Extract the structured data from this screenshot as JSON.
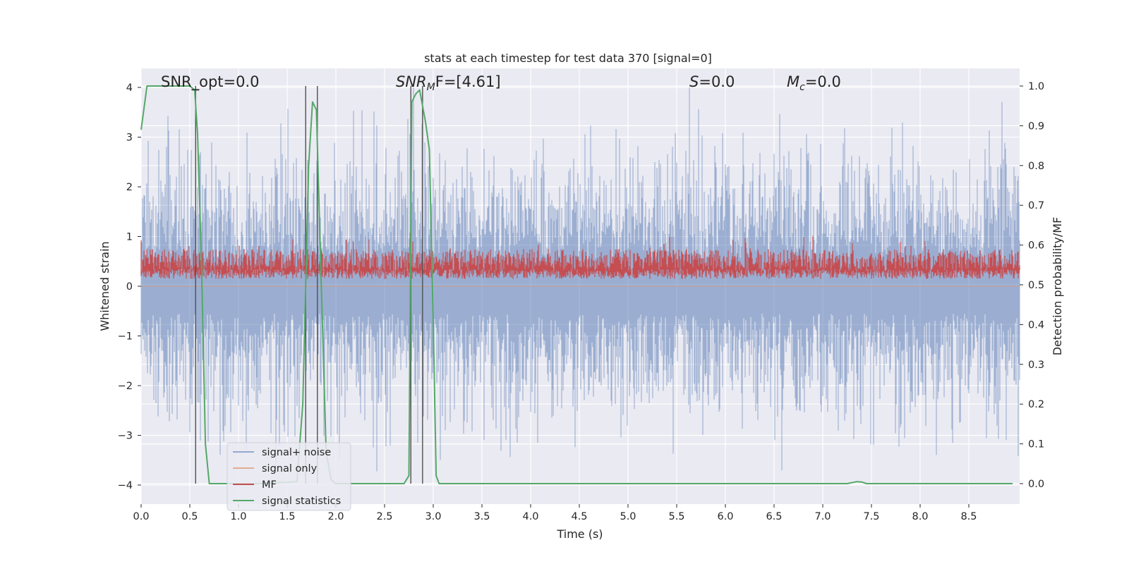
{
  "chart_data": {
    "type": "line",
    "title": "stats at each timestep for test data 370 [signal=0]",
    "xlabel": "Time (s)",
    "ylabel": "Whitened strain",
    "ylabel_right": "Detection probability/MF",
    "xlim": [
      0.0,
      9.0
    ],
    "ylim": [
      -4.4,
      4.4
    ],
    "ylim_right": [
      -0.05,
      1.05
    ],
    "xticks": [
      "0.0",
      "0.5",
      "1.0",
      "1.5",
      "2.0",
      "2.5",
      "3.0",
      "3.5",
      "4.0",
      "4.5",
      "5.0",
      "5.5",
      "6.0",
      "6.5",
      "7.0",
      "7.5",
      "8.0",
      "8.5"
    ],
    "xtick_values": [
      0.0,
      0.5,
      1.0,
      1.5,
      2.0,
      2.5,
      3.0,
      3.5,
      4.0,
      4.5,
      5.0,
      5.5,
      6.0,
      6.5,
      7.0,
      7.5,
      8.0,
      8.5
    ],
    "yticks": [
      "−4",
      "−3",
      "−2",
      "−1",
      "0",
      "1",
      "2",
      "3",
      "4"
    ],
    "ytick_values": [
      -4,
      -3,
      -2,
      -1,
      0,
      1,
      2,
      3,
      4
    ],
    "yticks_right": [
      "0.0",
      "0.1",
      "0.2",
      "0.3",
      "0.4",
      "0.5",
      "0.6",
      "0.7",
      "0.8",
      "0.9",
      "1.0"
    ],
    "ytick_values_right": [
      0.0,
      0.1,
      0.2,
      0.3,
      0.4,
      0.5,
      0.6,
      0.7,
      0.8,
      0.9,
      1.0
    ],
    "grid": true,
    "legend_position": "lower-left",
    "annotations": {
      "snr_opt": "SNR_opt=0.0",
      "snr_mf_main": "SNR",
      "snr_mf_sub": "M",
      "snr_mf_tail": "F=[4.61]",
      "s_main": "S",
      "s_tail": "=0.0",
      "mc_main": "M",
      "mc_sub": "c",
      "mc_tail": "=0.0"
    },
    "series": [
      {
        "name": "signal+ noise",
        "color": "#4c72b0",
        "axis": "left",
        "style": "dense noise, mostly between -1.6 and 1.6 with spikes to about ±4"
      },
      {
        "name": "signal only",
        "color": "#dd8452",
        "axis": "left",
        "values_note": "flat at 0"
      },
      {
        "name": "MF",
        "color": "#c44e52",
        "axis": "right",
        "style": "dense band between about 0.5 and 0.6"
      },
      {
        "name": "signal statistics",
        "color": "#55a868",
        "axis": "right",
        "x": [
          0.0,
          0.06,
          0.12,
          0.3,
          0.5,
          0.55,
          0.58,
          0.62,
          0.66,
          0.7,
          0.9,
          1.2,
          1.6,
          1.66,
          1.72,
          1.76,
          1.8,
          1.85,
          1.9,
          1.95,
          2.0,
          2.2,
          2.5,
          2.7,
          2.75,
          2.78,
          2.82,
          2.86,
          2.92,
          2.96,
          3.0,
          3.03,
          3.06,
          3.1,
          4.0,
          5.0,
          6.0,
          7.0,
          7.25,
          7.35,
          7.4,
          7.45,
          8.0,
          8.95
        ],
        "y": [
          0.89,
          1.0,
          1.0,
          1.0,
          1.0,
          0.99,
          0.88,
          0.55,
          0.1,
          0.0,
          0.0,
          0.0,
          0.005,
          0.2,
          0.8,
          0.96,
          0.94,
          0.5,
          0.08,
          0.01,
          0.0,
          0.0,
          0.0,
          0.0,
          0.02,
          0.96,
          0.98,
          0.99,
          0.91,
          0.84,
          0.4,
          0.02,
          0.0,
          0.0,
          0.0,
          0.0,
          0.0,
          0.0,
          0.0,
          0.005,
          0.004,
          0.0,
          0.0,
          0.0
        ]
      }
    ],
    "vertical_markers_x": [
      0.56,
      1.69,
      1.81,
      2.77,
      2.89
    ],
    "legend": {
      "items": [
        "signal+ noise",
        "signal only",
        "MF",
        "signal statistics"
      ]
    }
  }
}
